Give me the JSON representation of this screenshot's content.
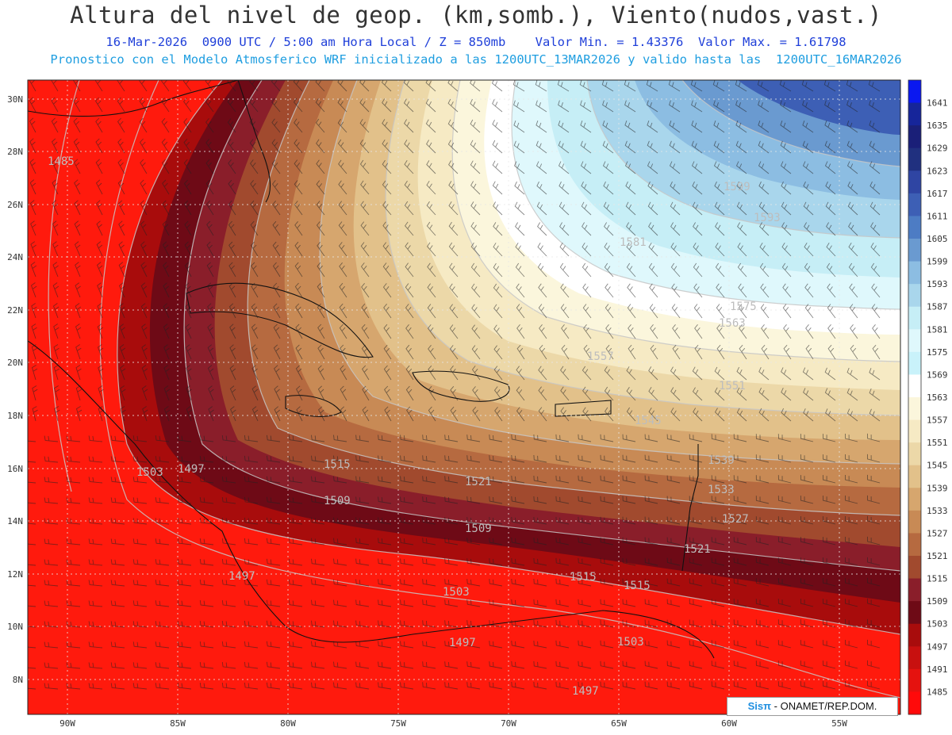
{
  "header": {
    "title": "Altura del nivel de geop. (km,somb.), Viento(nudos,vast.)",
    "valid_line": "16-Mar-2026  0900 UTC / 5:00 am Hora Local / Z = 850mb    Valor Min. = 1.43376  Valor Max. = 1.61798",
    "model_line": "Pronostico con el Modelo Atmosferico WRF inicializado a las 1200UTC_13MAR2026 y valido hasta las  1200UTC_16MAR2026"
  },
  "map": {
    "lon_labels": [
      "90W",
      "85W",
      "80W",
      "75W",
      "70W",
      "65W",
      "60W",
      "55W"
    ],
    "lat_labels": [
      "30N",
      "28N",
      "26N",
      "24N",
      "22N",
      "20N",
      "18N",
      "16N",
      "14N",
      "12N",
      "10N",
      "8N"
    ],
    "contour_labels": [
      "1485",
      "1503",
      "1497",
      "1509",
      "1515",
      "1521",
      "1497",
      "1503",
      "1509",
      "1515",
      "1515",
      "1503",
      "1497",
      "1497",
      "1557",
      "1551",
      "1545",
      "1539",
      "1533",
      "1527",
      "1521",
      "1563",
      "1575",
      "1581",
      "1593",
      "1599"
    ]
  },
  "colorbar": {
    "levels": [
      "1641",
      "1635",
      "1629",
      "1623",
      "1617",
      "1611",
      "1605",
      "1599",
      "1593",
      "1587",
      "1581",
      "1575",
      "1569",
      "1563",
      "1557",
      "1551",
      "1545",
      "1539",
      "1533",
      "1527",
      "1521",
      "1515",
      "1509",
      "1503",
      "1497",
      "1491",
      "1485"
    ],
    "colors": [
      "#0a18f0",
      "#16259a",
      "#1a1f78",
      "#20307f",
      "#2f45a3",
      "#3d5fb5",
      "#4d7cc4",
      "#6a9ad0",
      "#8cbde2",
      "#a9d6ec",
      "#c6eef6",
      "#dff8fc",
      "#c9f2fa",
      "#ffffff",
      "#fbf6dc",
      "#f6eac4",
      "#ecd8a8",
      "#e2c18a",
      "#d6a66e",
      "#c88a55",
      "#b66a40",
      "#a14a2e",
      "#8a1e2a",
      "#6e0a16",
      "#a80c0c",
      "#c8100f",
      "#e5120f",
      "#ff0a0a"
    ]
  },
  "credit": {
    "brand": "Sisπ",
    "text": " - ONAMET/REP.DOM."
  }
}
